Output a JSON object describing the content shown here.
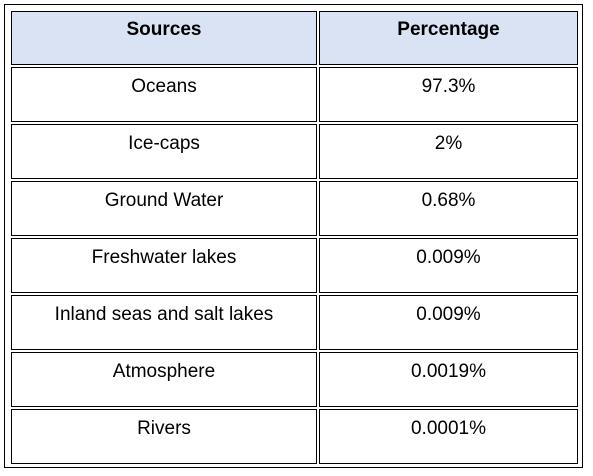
{
  "table": {
    "headers": [
      "Sources",
      "Percentage"
    ],
    "rows": [
      {
        "source": "Oceans",
        "percentage": "97.3%"
      },
      {
        "source": "Ice-caps",
        "percentage": "2%"
      },
      {
        "source": "Ground Water",
        "percentage": "0.68%"
      },
      {
        "source": "Freshwater lakes",
        "percentage": "0.009%"
      },
      {
        "source": "Inland seas and salt lakes",
        "percentage": "0.009%"
      },
      {
        "source": "Atmosphere",
        "percentage": "0.0019%"
      },
      {
        "source": "Rivers",
        "percentage": "0.0001%"
      }
    ]
  },
  "colors": {
    "header_background": "#dae3f3",
    "border": "#000000"
  }
}
